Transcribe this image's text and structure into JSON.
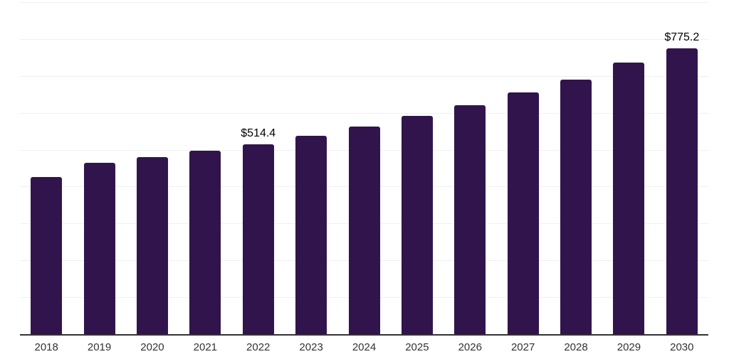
{
  "chart_data": {
    "type": "bar",
    "title": "",
    "xlabel": "",
    "ylabel": "",
    "categories": [
      "2018",
      "2019",
      "2020",
      "2021",
      "2022",
      "2023",
      "2024",
      "2025",
      "2026",
      "2027",
      "2028",
      "2029",
      "2030"
    ],
    "values": [
      425.1,
      463.9,
      480.4,
      497.2,
      514.4,
      538.2,
      562.1,
      591.0,
      620.5,
      655.2,
      690.5,
      735.5,
      775.2
    ],
    "bar_labels": [
      "",
      "",
      "",
      "",
      "$514.4",
      "",
      "",
      "",
      "",
      "",
      "",
      "",
      "$775.2"
    ],
    "ylim": [
      0,
      900
    ],
    "gridline_step": 100,
    "grid": "horizontal",
    "y_axis_tick_labels": "none",
    "legend": "none",
    "colors": {
      "bar": "#32144d",
      "axis_line": "#333333",
      "gridline": "#f0f0f0",
      "value_label": "#000000",
      "tick_label": "#333333",
      "background": "#ffffff"
    }
  }
}
